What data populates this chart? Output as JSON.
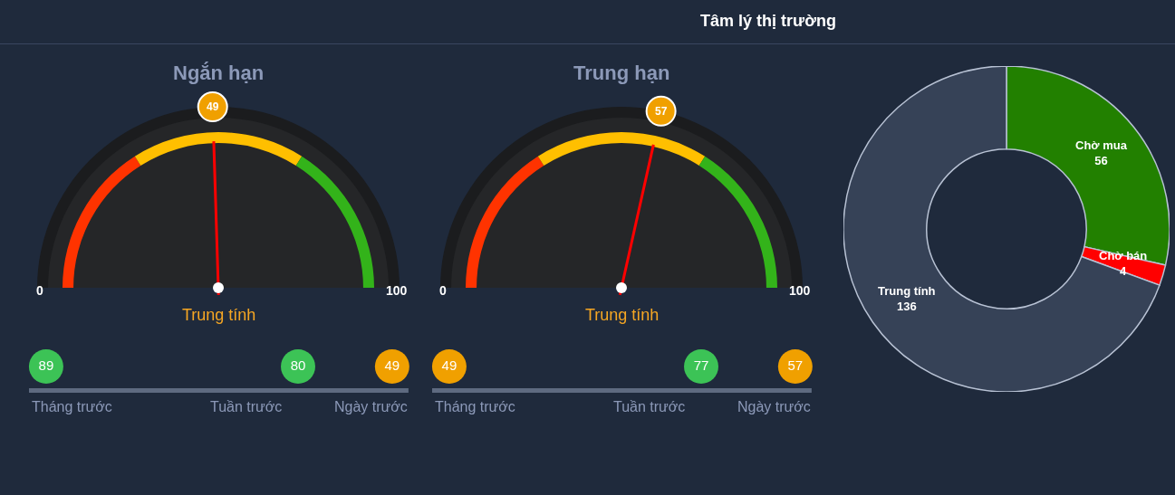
{
  "chart_data": [
    {
      "type": "donut",
      "title": "Ngắn hạn",
      "categories": [
        null,
        null,
        null
      ],
      "values": [
        32,
        36,
        32
      ],
      "colors": [
        "#ff3300",
        "#ffbf00",
        "#33b31a"
      ],
      "annotations": [
        "0",
        "100",
        "49",
        "Trung tính"
      ]
    },
    {
      "type": "other",
      "categories": [
        "Tháng trước",
        "Tuần trước",
        "Ngày trước"
      ],
      "values": [
        89,
        80,
        49
      ],
      "colors": [
        "#3cc356",
        "#3cc356",
        "#f0a000"
      ],
      "data_labels": true
    },
    {
      "type": "donut",
      "title": "Trung hạn",
      "categories": [
        null,
        null,
        null
      ],
      "values": [
        32,
        36,
        32
      ],
      "colors": [
        "#ff3300",
        "#ffbf00",
        "#33b31a"
      ],
      "annotations": [
        "0",
        "100",
        "57",
        "Trung tính"
      ]
    },
    {
      "type": "other",
      "categories": [
        "Tháng trước",
        "Tuần trước",
        "Ngày trước"
      ],
      "values": [
        49,
        77,
        57
      ],
      "colors": [
        "#f0a000",
        "#3cc356",
        "#f0a000"
      ],
      "data_labels": true
    },
    {
      "type": "donut",
      "title": "Tâm lý thị trường",
      "categories": [
        "Chờ mua",
        "Chờ bán",
        "Trung tính"
      ],
      "values": [
        56,
        4,
        136
      ],
      "colors": [
        "#228000",
        "#ff0000",
        "#364257"
      ],
      "data_labels": true
    }
  ]
}
